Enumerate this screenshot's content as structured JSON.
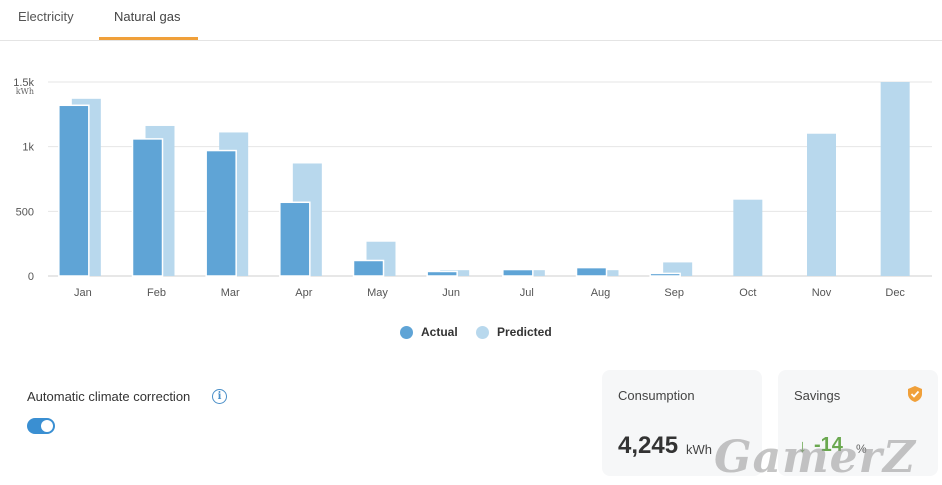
{
  "tabs": [
    {
      "label": "Electricity",
      "active": false
    },
    {
      "label": "Natural gas",
      "active": true
    }
  ],
  "colors": {
    "actual": "#5fa4d6",
    "predicted": "#b8d8ed",
    "accent": "#f0a03a",
    "toggle": "#3a8fd2",
    "savings": "#6aa84f"
  },
  "chart_data": {
    "type": "bar",
    "categories": [
      "Jan",
      "Feb",
      "Mar",
      "Apr",
      "May",
      "Jun",
      "Jul",
      "Aug",
      "Sep",
      "Oct",
      "Nov",
      "Dec"
    ],
    "series": [
      {
        "name": "Actual",
        "values": [
          1320,
          1060,
          970,
          570,
          120,
          35,
          50,
          65,
          20,
          null,
          null,
          null
        ]
      },
      {
        "name": "Predicted",
        "values": [
          1370,
          1160,
          1110,
          870,
          265,
          45,
          45,
          45,
          105,
          590,
          1100,
          1500
        ]
      }
    ],
    "yticks": [
      {
        "value": 0,
        "label": "0"
      },
      {
        "value": 500,
        "label": "500"
      },
      {
        "value": 1000,
        "label": "1k"
      },
      {
        "value": 1500,
        "label": "1.5k"
      }
    ],
    "yunit": "kWh",
    "ylim": [
      0,
      1500
    ],
    "grid": true,
    "legend": "bottom-center"
  },
  "legend": {
    "actual": "Actual",
    "predicted": "Predicted"
  },
  "climate": {
    "label": "Automatic climate correction",
    "info_icon": "i",
    "enabled": true
  },
  "consumption": {
    "title": "Consumption",
    "value": "4,245",
    "unit": "kWh"
  },
  "savings": {
    "title": "Savings",
    "arrow": "↓",
    "value": "-14",
    "unit": "%"
  },
  "watermark": "GamerZ"
}
